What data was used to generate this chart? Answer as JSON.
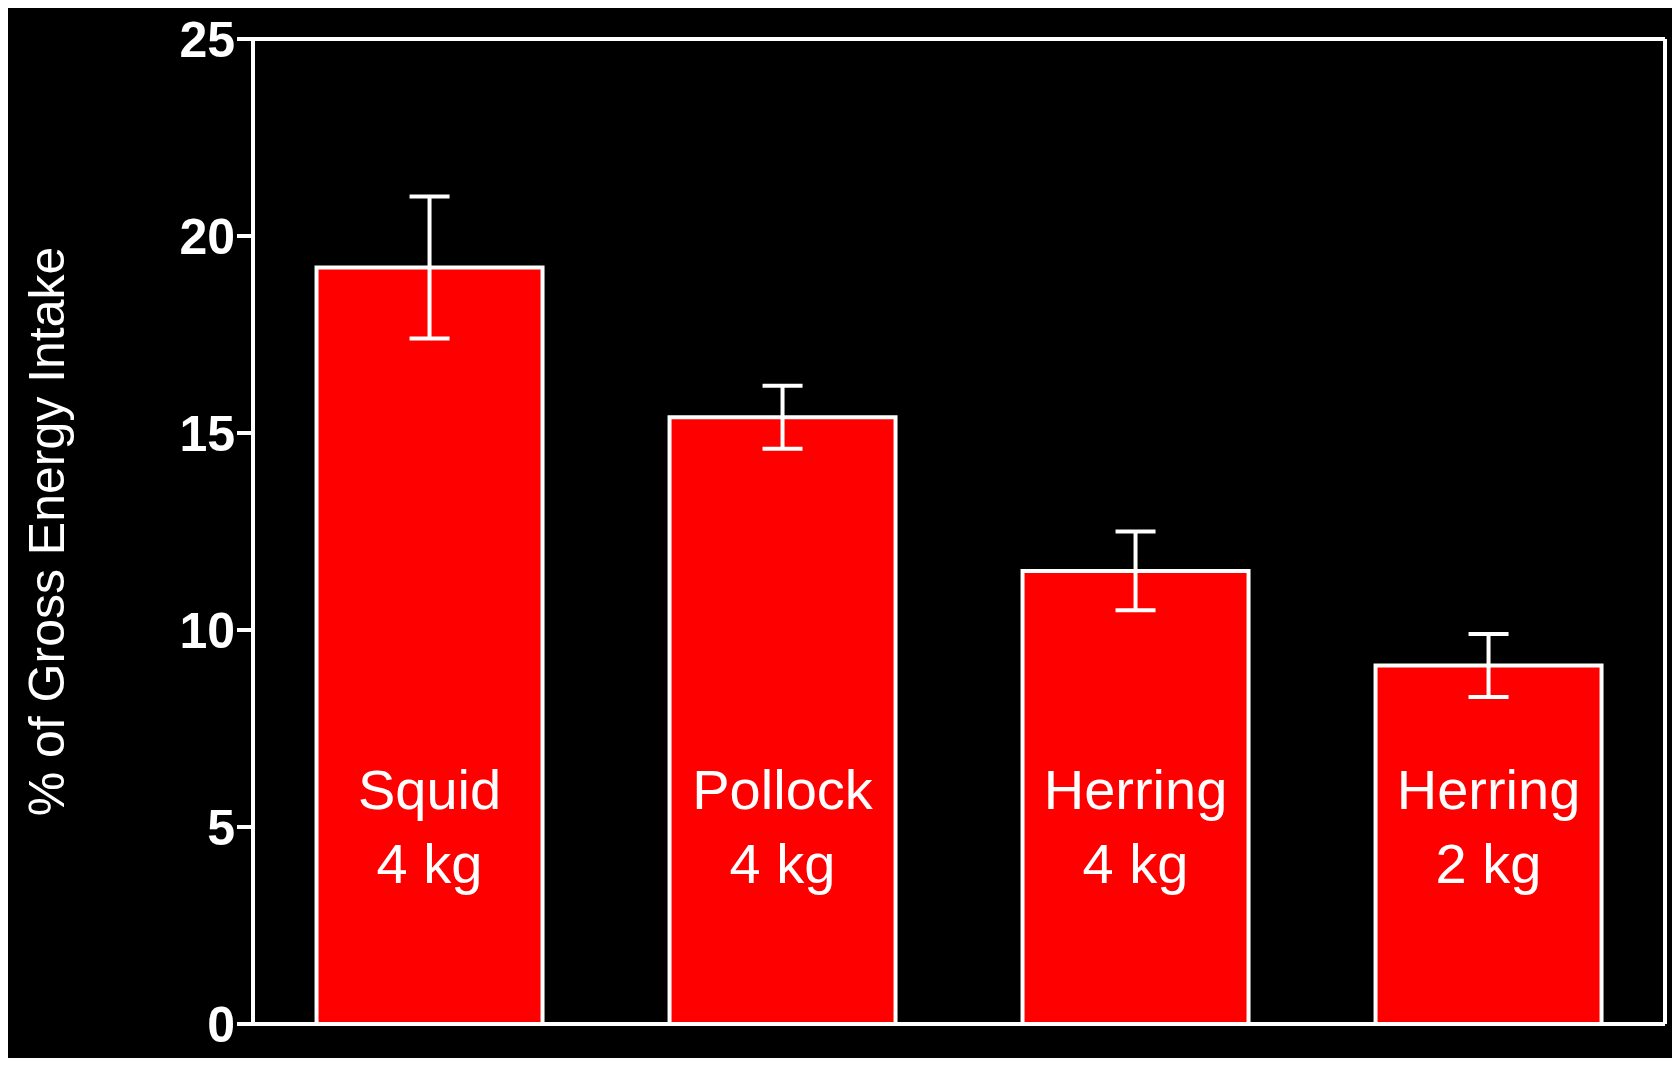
{
  "chart_data": {
    "type": "bar",
    "ylabel": "% of Gross Energy Intake",
    "categories": [
      "Squid\n4 kg",
      "Pollock\n4 kg",
      "Herring\n4 kg",
      "Herring\n2 kg"
    ],
    "values": [
      19.2,
      15.4,
      11.5,
      9.1
    ],
    "errors": [
      1.8,
      0.8,
      1.0,
      0.8
    ],
    "color": "#ff0000",
    "ylim": [
      0,
      25
    ],
    "yticks": [
      0,
      5,
      10,
      15,
      20,
      25
    ],
    "grid": false
  }
}
